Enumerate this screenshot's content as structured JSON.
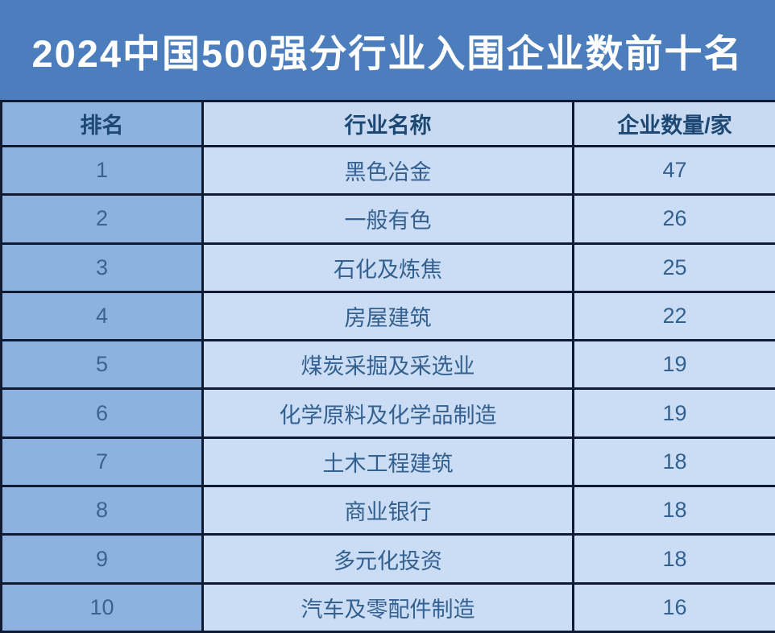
{
  "title": "2024中国500强分行业入围企业数前十名",
  "colors": {
    "banner_bg": "#4C7EBD",
    "title_text": "#FFFFFF",
    "rank_column_bg": "#8EB2E0",
    "cell_bg": "#CBDDF4",
    "border": "#0E1B33",
    "header_text": "#1E4874",
    "cell_text": "#33608F"
  },
  "table": {
    "headers": [
      "排名",
      "行业名称",
      "企业数量/家"
    ],
    "rows": [
      {
        "rank": "1",
        "industry": "黑色冶金",
        "count": "47"
      },
      {
        "rank": "2",
        "industry": "一般有色",
        "count": "26"
      },
      {
        "rank": "3",
        "industry": "石化及炼焦",
        "count": "25"
      },
      {
        "rank": "4",
        "industry": "房屋建筑",
        "count": "22"
      },
      {
        "rank": "5",
        "industry": "煤炭采掘及采选业",
        "count": "19"
      },
      {
        "rank": "6",
        "industry": "化学原料及化学品制造",
        "count": "19"
      },
      {
        "rank": "7",
        "industry": "土木工程建筑",
        "count": "18"
      },
      {
        "rank": "8",
        "industry": "商业银行",
        "count": "18"
      },
      {
        "rank": "9",
        "industry": "多元化投资",
        "count": "18"
      },
      {
        "rank": "10",
        "industry": "汽车及零配件制造",
        "count": "16"
      }
    ]
  },
  "chart_data": {
    "type": "table",
    "title": "2024中国500强分行业入围企业数前十名",
    "columns": [
      "排名",
      "行业名称",
      "企业数量/家"
    ],
    "rows": [
      [
        1,
        "黑色冶金",
        47
      ],
      [
        2,
        "一般有色",
        26
      ],
      [
        3,
        "石化及炼焦",
        25
      ],
      [
        4,
        "房屋建筑",
        22
      ],
      [
        5,
        "煤炭采掘及采选业",
        19
      ],
      [
        6,
        "化学原料及化学品制造",
        19
      ],
      [
        7,
        "土木工程建筑",
        18
      ],
      [
        8,
        "商业银行",
        18
      ],
      [
        9,
        "多元化投资",
        18
      ],
      [
        10,
        "汽车及零配件制造",
        16
      ]
    ]
  }
}
